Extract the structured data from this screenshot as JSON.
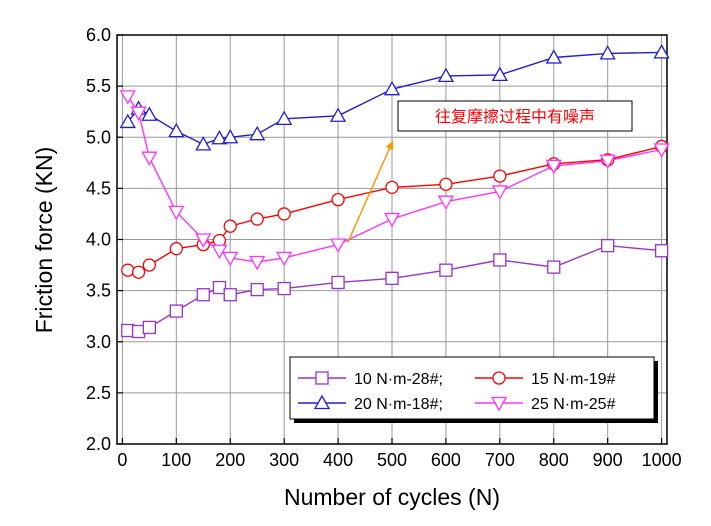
{
  "chart_data": {
    "type": "line",
    "xlabel": "Number of cycles (N)",
    "ylabel": "Friction force (KN)",
    "xlim": [
      -10,
      1010
    ],
    "ylim": [
      2.0,
      6.0
    ],
    "xticks": [
      0,
      100,
      200,
      300,
      400,
      500,
      600,
      700,
      800,
      900,
      1000
    ],
    "yticks": [
      2.0,
      2.5,
      3.0,
      3.5,
      4.0,
      4.5,
      5.0,
      5.5,
      6.0
    ],
    "grid": true,
    "legend_position": "bottom-right",
    "series": [
      {
        "name": "10 N·m-28#;",
        "color": "#9933cc",
        "marker": "square",
        "x": [
          10,
          30,
          50,
          100,
          150,
          180,
          200,
          250,
          300,
          400,
          500,
          600,
          700,
          800,
          900,
          1000
        ],
        "y": [
          3.11,
          3.1,
          3.14,
          3.3,
          3.46,
          3.53,
          3.46,
          3.51,
          3.52,
          3.58,
          3.62,
          3.7,
          3.8,
          3.73,
          3.94,
          3.89
        ]
      },
      {
        "name": "15 N·m-19#",
        "color": "#ff0000",
        "marker": "circle",
        "x": [
          10,
          30,
          50,
          100,
          150,
          180,
          200,
          250,
          300,
          400,
          500,
          600,
          700,
          800,
          900,
          1000
        ],
        "y": [
          3.7,
          3.68,
          3.75,
          3.91,
          3.95,
          3.99,
          4.13,
          4.2,
          4.25,
          4.39,
          4.51,
          4.54,
          4.62,
          4.74,
          4.78,
          4.91
        ]
      },
      {
        "name": "20 N·m-18#;",
        "color": "#1f1fd6",
        "marker": "triangle-up",
        "x": [
          10,
          30,
          50,
          100,
          150,
          180,
          200,
          250,
          300,
          400,
          500,
          600,
          700,
          800,
          900,
          1000
        ],
        "y": [
          5.15,
          5.28,
          5.22,
          5.06,
          4.93,
          4.99,
          5.0,
          5.03,
          5.18,
          5.21,
          5.47,
          5.6,
          5.61,
          5.78,
          5.82,
          5.83
        ]
      },
      {
        "name": "25 N·m-25#",
        "color": "#ff33ff",
        "marker": "triangle-down",
        "x": [
          10,
          30,
          50,
          100,
          150,
          180,
          200,
          250,
          300,
          400,
          500,
          600,
          700,
          800,
          900,
          1000
        ],
        "y": [
          5.4,
          5.24,
          4.8,
          4.27,
          4.0,
          3.89,
          3.82,
          3.78,
          3.82,
          3.95,
          4.2,
          4.37,
          4.47,
          4.72,
          4.77,
          4.88
        ]
      }
    ],
    "annotations": [
      {
        "text": "往复摩擦过程中有噪声",
        "color": "#ff0000",
        "arrow_color": "#ff9900",
        "arrow_from": [
          418,
          3.97
        ],
        "arrow_to": [
          502,
          4.97
        ]
      }
    ]
  }
}
